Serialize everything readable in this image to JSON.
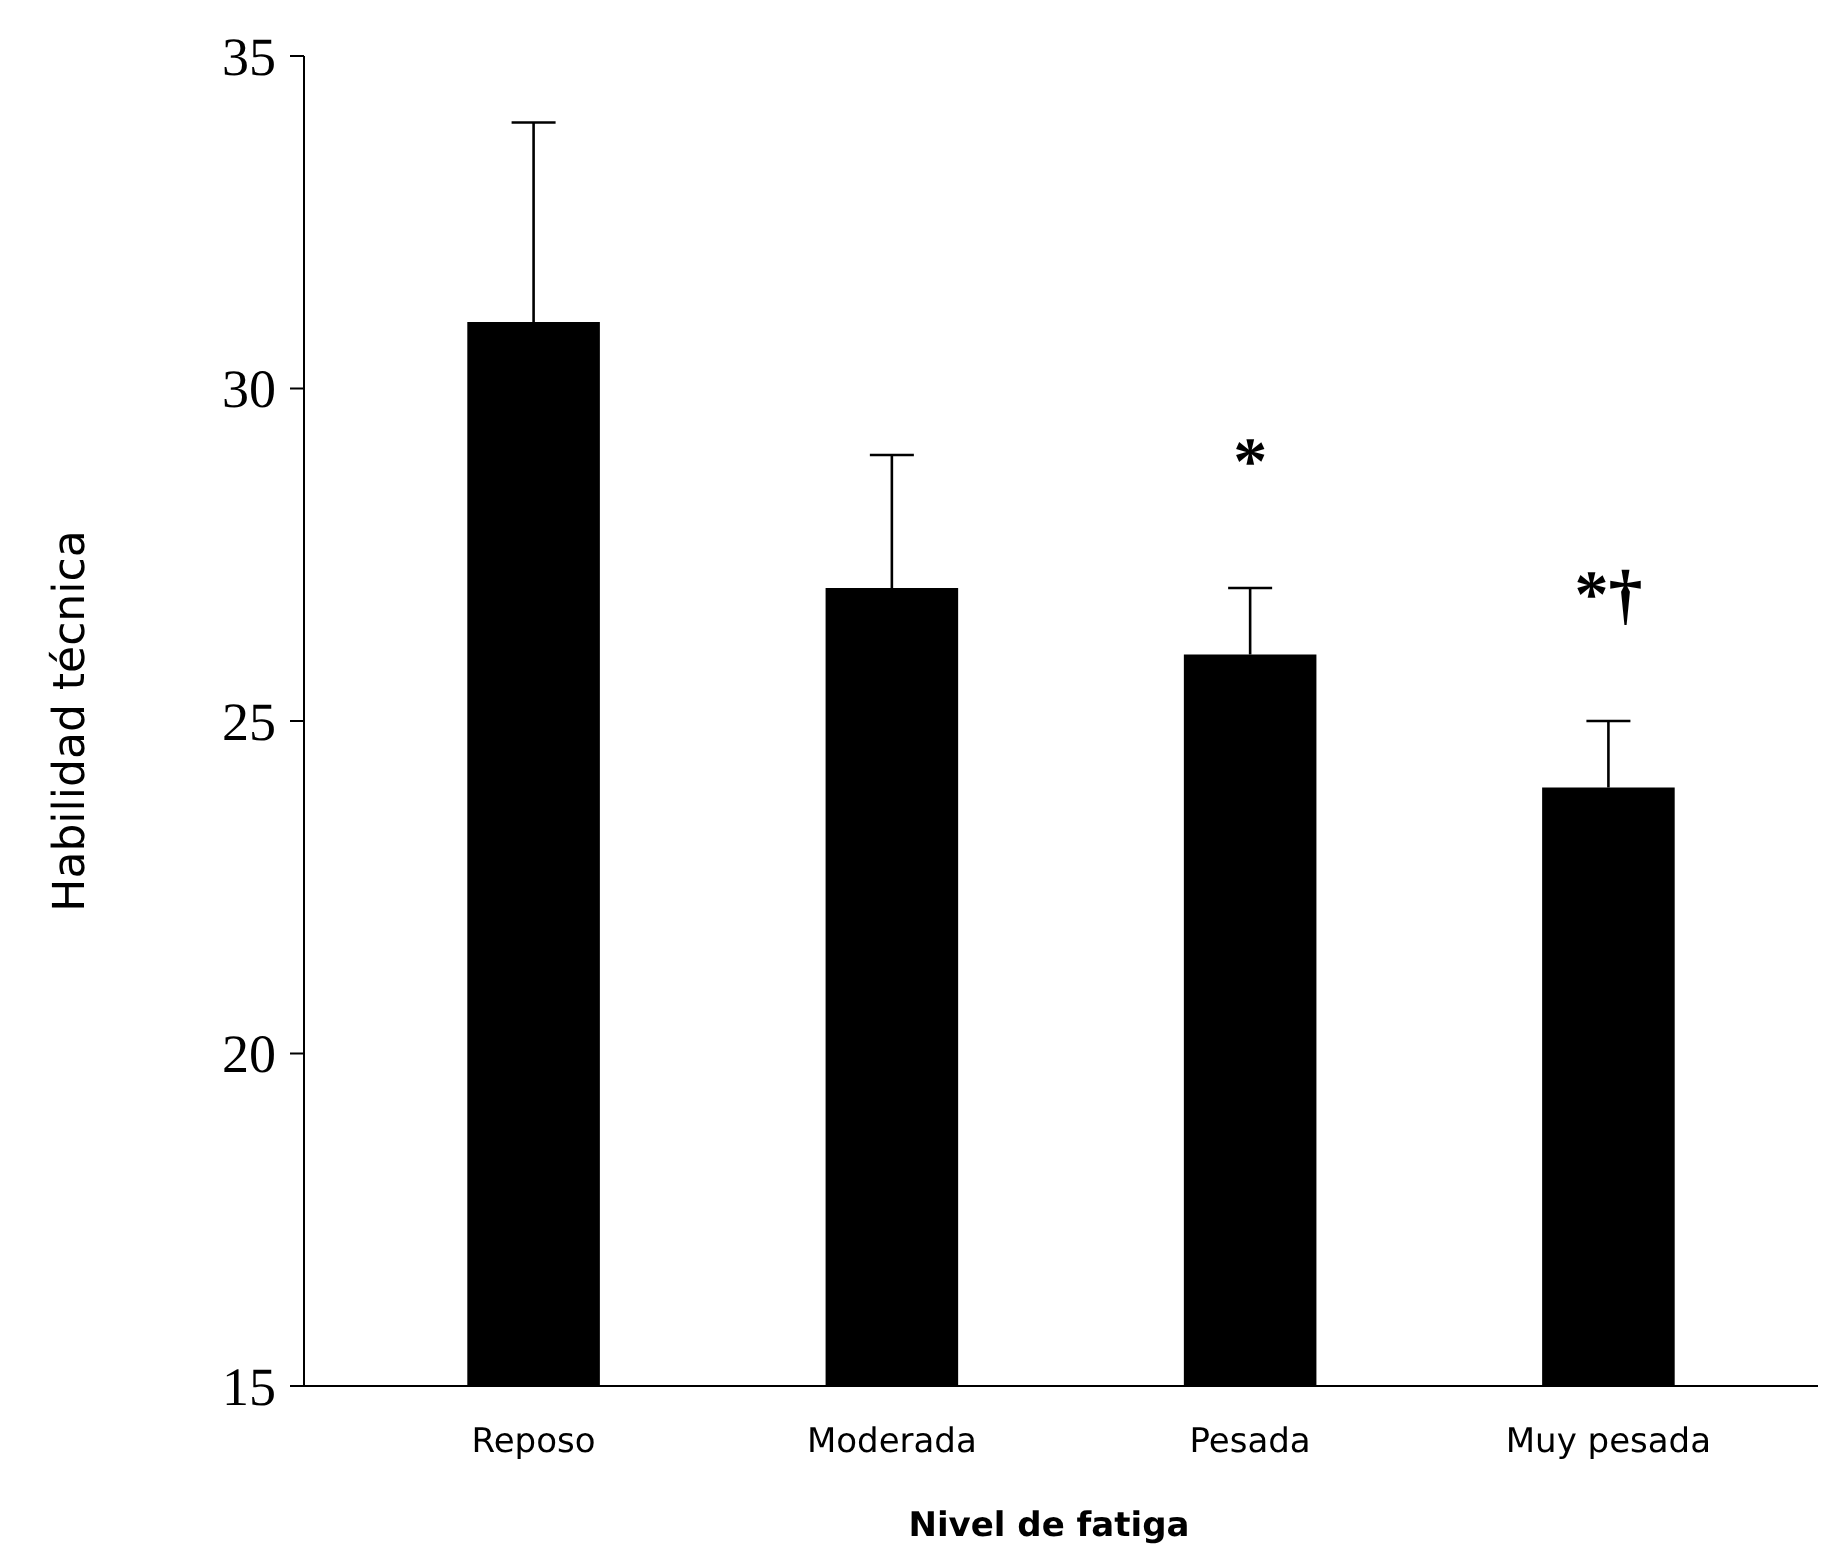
{
  "chart_data": {
    "type": "bar",
    "xlabel": "Nivel de fatiga",
    "ylabel": "Habilidad técnica",
    "categories": [
      "Reposo",
      "Moderada",
      "Pesada",
      "Muy pesada"
    ],
    "values": [
      31,
      27,
      26,
      24
    ],
    "color": "#000000",
    "errors": [
      [
        31,
        34
      ],
      [
        27,
        29
      ],
      [
        26,
        27
      ],
      [
        24,
        25
      ]
    ],
    "ylim": [
      15,
      35
    ],
    "yticks": [
      15,
      20,
      25,
      30,
      35
    ],
    "grid": false,
    "annotations": [
      "*",
      "*†"
    ]
  }
}
